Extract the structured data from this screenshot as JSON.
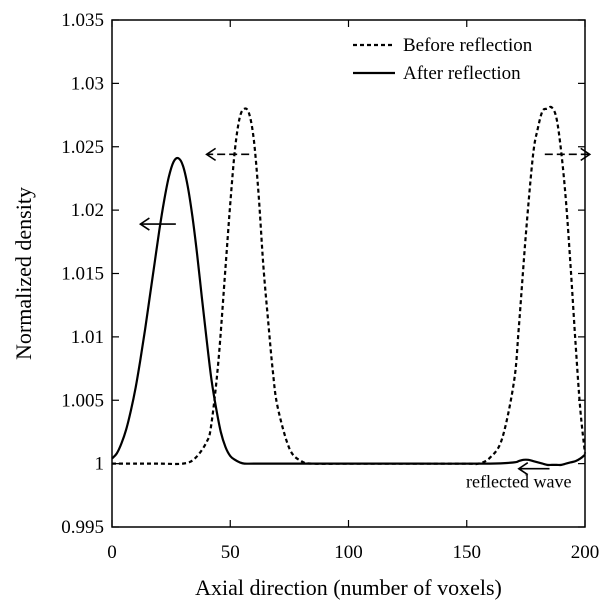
{
  "chart_data": {
    "type": "line",
    "title": "",
    "xlabel": "Axial direction (number of voxels)",
    "ylabel": "Normalized density",
    "xlim": [
      0,
      200
    ],
    "ylim": [
      0.995,
      1.035
    ],
    "x_ticks": [
      0,
      50,
      100,
      150,
      200
    ],
    "x_tick_labels": [
      "0",
      "50",
      "100",
      "150",
      "200"
    ],
    "y_ticks": [
      0.995,
      1.0,
      1.005,
      1.01,
      1.015,
      1.02,
      1.025,
      1.03,
      1.035
    ],
    "y_tick_labels": [
      "0.995",
      "1",
      "1.005",
      "1.01",
      "1.015",
      "1.02",
      "1.025",
      "1.03",
      "1.035"
    ],
    "grid": false,
    "legend_position": "top-right",
    "series": [
      {
        "name": "Before reflection",
        "line_style": "dashed",
        "color": "#000000",
        "x": [
          0,
          10,
          20,
          30,
          35,
          40,
          42,
          45,
          48,
          50,
          52,
          54,
          56,
          58,
          60,
          62,
          64,
          66,
          68,
          70,
          75,
          80,
          85,
          100,
          130,
          150,
          155,
          160,
          165,
          170,
          172,
          175,
          178,
          180,
          182,
          184,
          186,
          188,
          190,
          192,
          194,
          196,
          198,
          200
        ],
        "y": [
          1.0,
          1.0,
          1.0,
          1.0,
          1.0004,
          1.0017,
          1.0031,
          1.0081,
          1.0155,
          1.0205,
          1.0248,
          1.0273,
          1.028,
          1.0276,
          1.0255,
          1.0212,
          1.0156,
          1.0113,
          1.0073,
          1.0045,
          1.0012,
          1.0002,
          1.0,
          1.0,
          1.0,
          1.0,
          1.0,
          1.0005,
          1.002,
          1.0065,
          1.0107,
          1.0181,
          1.0243,
          1.0264,
          1.0278,
          1.028,
          1.0281,
          1.0272,
          1.0245,
          1.0206,
          1.0153,
          1.0095,
          1.0043,
          1.0008
        ]
      },
      {
        "name": "After reflection",
        "line_style": "solid",
        "color": "#000000",
        "x": [
          0,
          2,
          4,
          6,
          8,
          10,
          12,
          14,
          16,
          18,
          20,
          22,
          24,
          26,
          28,
          30,
          32,
          34,
          36,
          38,
          40,
          42,
          44,
          46,
          48,
          50,
          52,
          54,
          56,
          60,
          70,
          100,
          130,
          160,
          170,
          172,
          174,
          176,
          178,
          180,
          182,
          184,
          186,
          188,
          190,
          192,
          194,
          196,
          198,
          200
        ],
        "y": [
          1.0004,
          1.0008,
          1.0016,
          1.0027,
          1.0042,
          1.006,
          1.0082,
          1.0106,
          1.0132,
          1.0158,
          1.0184,
          1.0207,
          1.0226,
          1.0238,
          1.0241,
          1.0235,
          1.0219,
          1.0195,
          1.0165,
          1.0131,
          1.0098,
          1.0067,
          1.0044,
          1.0025,
          1.0013,
          1.0006,
          1.0003,
          1.0001,
          1.0,
          1.0,
          1.0,
          1.0,
          1.0,
          1.0,
          1.0001,
          1.0002,
          1.0003,
          1.0003,
          1.0002,
          1.0001,
          1.0,
          0.9999,
          0.9999,
          0.9999,
          0.9999,
          1.0,
          1.0001,
          1.0002,
          1.0004,
          1.0007
        ]
      }
    ],
    "annotations": [
      {
        "type": "label",
        "text": "reflected wave",
        "x": 172,
        "y": 0.9986
      },
      {
        "type": "arrow",
        "line_style": "dashed",
        "direction": "left",
        "x_from": 58,
        "x_to": 40,
        "y": 1.0244
      },
      {
        "type": "arrow",
        "line_style": "dashed",
        "direction": "right",
        "x_from": 183,
        "x_to": 202,
        "y": 1.0244
      },
      {
        "type": "arrow",
        "line_style": "solid",
        "direction": "left",
        "x_from": 27,
        "x_to": 12,
        "y": 1.0189
      },
      {
        "type": "arrow",
        "line_style": "solid",
        "direction": "left",
        "x_from": 185,
        "x_to": 172,
        "y": 0.9996
      }
    ]
  }
}
